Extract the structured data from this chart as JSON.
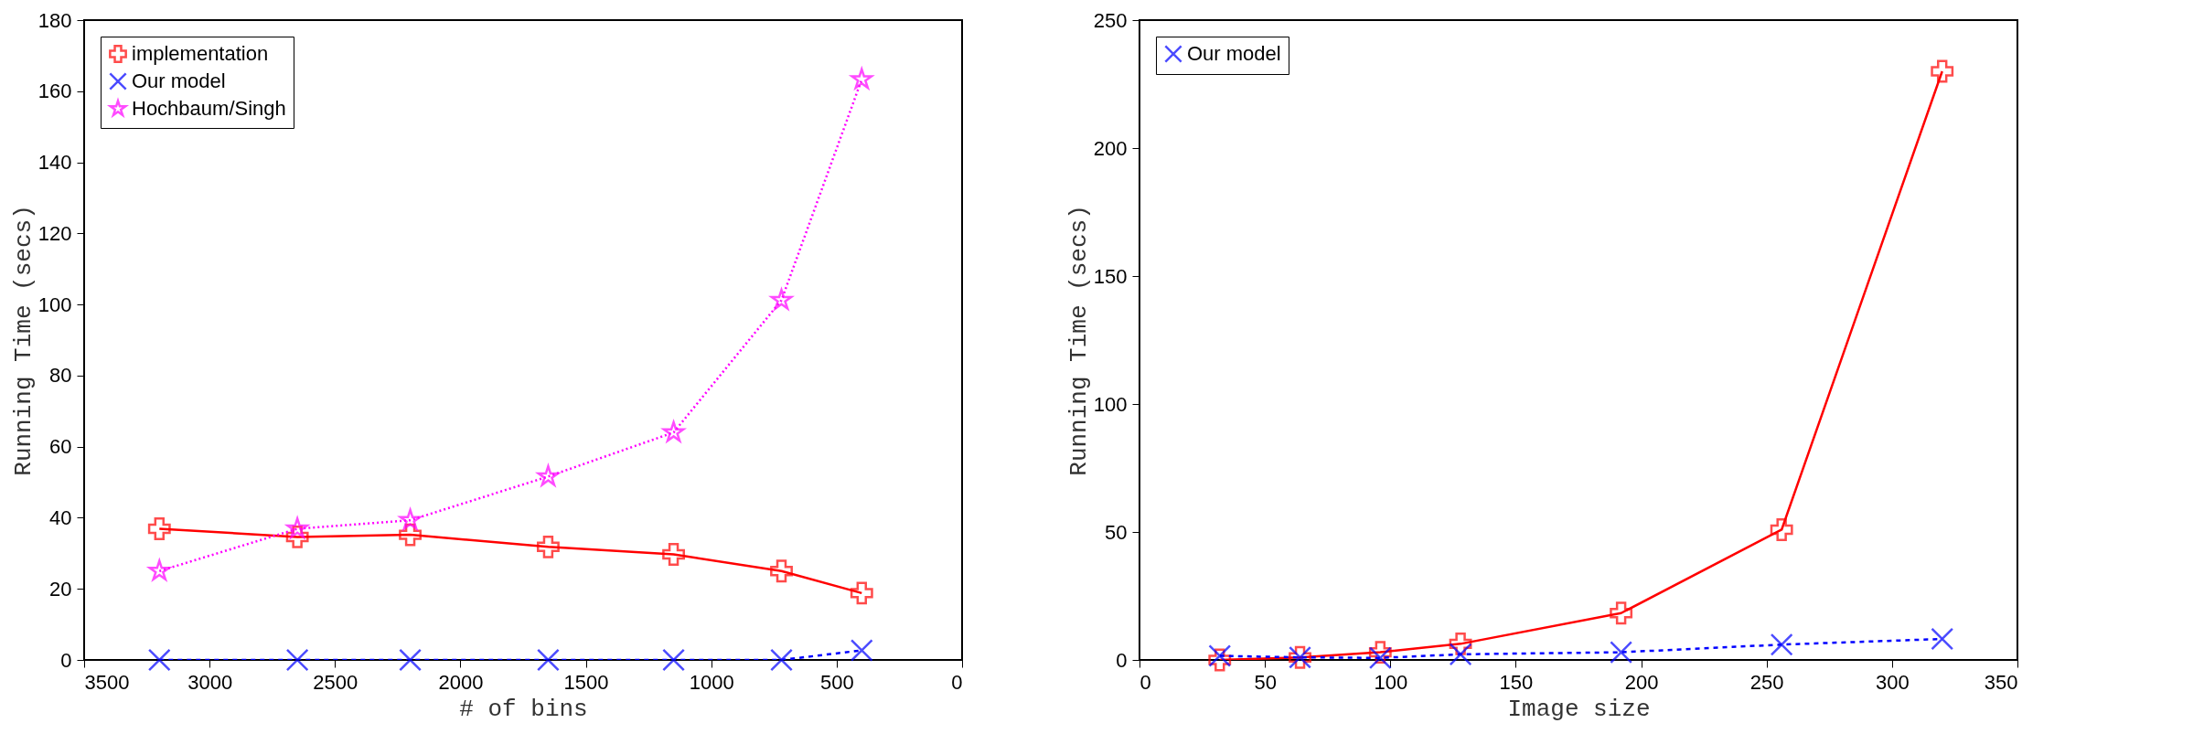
{
  "chart_data": [
    {
      "type": "line",
      "xlabel": "# of bins",
      "ylabel": "Running Time (secs)",
      "x": [
        3200,
        2650,
        2200,
        1650,
        1150,
        720,
        400
      ],
      "xlim": [
        3500,
        0
      ],
      "xticks": [
        3500,
        3000,
        2500,
        2000,
        1500,
        1000,
        500,
        0
      ],
      "ylim": [
        0,
        180
      ],
      "yticks": [
        0,
        20,
        40,
        60,
        80,
        100,
        120,
        140,
        160,
        180
      ],
      "grid": false,
      "legend": "top left",
      "series": [
        {
          "name": "implementation",
          "color": "#ff0000",
          "marker": "cross",
          "line_style": "solid",
          "values": [
            36.9,
            34.6,
            35.2,
            31.8,
            29.7,
            25,
            18.8
          ]
        },
        {
          "name": "Our model",
          "color": "#0000ff",
          "marker": "x",
          "line_style": "dashed",
          "values": [
            0,
            0,
            0,
            0,
            0,
            0,
            2.7
          ]
        },
        {
          "name": "Hochbaum/Singh",
          "color": "#ff00ff",
          "marker": "star",
          "line_style": "dotted",
          "values": [
            25,
            36.9,
            39.3,
            51.6,
            64,
            101.2,
            163.3
          ]
        }
      ]
    },
    {
      "type": "line",
      "xlabel": "Image size",
      "ylabel": "Running Time (secs)",
      "x": [
        32,
        64,
        96,
        128,
        192,
        256,
        320
      ],
      "xlim": [
        0,
        350
      ],
      "xticks": [
        0,
        50,
        100,
        150,
        200,
        250,
        300,
        350
      ],
      "ylim": [
        0,
        250
      ],
      "yticks": [
        0,
        50,
        100,
        150,
        200,
        250
      ],
      "grid": false,
      "legend": "top left",
      "series": [
        {
          "color": "#ff0000",
          "marker": "cross",
          "line_style": "solid",
          "values": [
            0,
            1,
            3,
            6.3,
            18.3,
            50.9,
            230
          ]
        },
        {
          "name": "Our model",
          "color": "#0000ff",
          "marker": "x",
          "line_style": "dashed",
          "values": [
            1.6,
            1,
            0.8,
            2.2,
            3,
            6,
            8.2
          ]
        }
      ]
    }
  ]
}
